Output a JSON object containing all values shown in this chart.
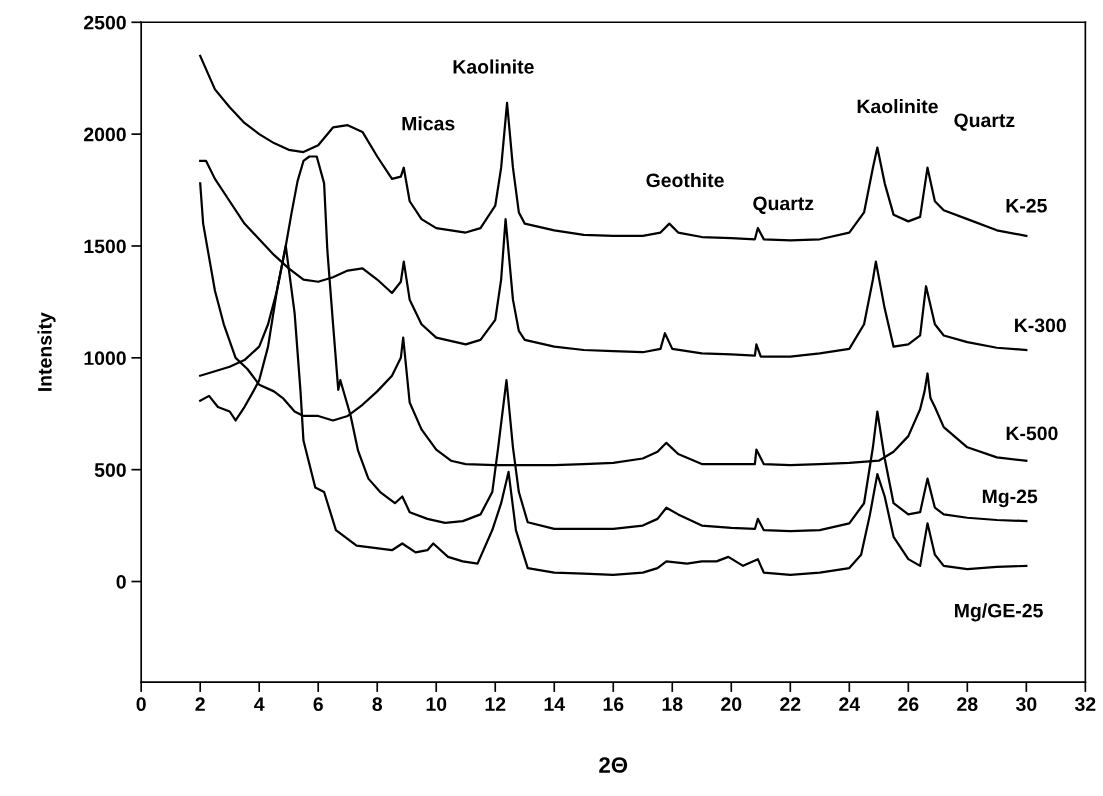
{
  "chart_data": {
    "type": "line",
    "xlabel": "2Θ",
    "ylabel": "Intensity",
    "xlim": [
      0,
      32
    ],
    "xticks": [
      0,
      2,
      4,
      6,
      8,
      10,
      12,
      14,
      16,
      18,
      20,
      22,
      24,
      26,
      28,
      30,
      32
    ],
    "ylim": [
      -450,
      2500
    ],
    "yticks": [
      0,
      500,
      1000,
      1500,
      2000,
      2500
    ],
    "grid": false,
    "legend": false,
    "marker": "none",
    "line_style": "solid",
    "series": [
      {
        "name": "K-25",
        "color": "#000000",
        "x": [
          2,
          2.5,
          3,
          3.5,
          4,
          4.5,
          5,
          5.5,
          6,
          6.5,
          7,
          7.5,
          8,
          8.5,
          8.8,
          8.9,
          9.1,
          9.5,
          10,
          11,
          11.5,
          12,
          12.2,
          12.4,
          12.6,
          12.8,
          13,
          14,
          15,
          16,
          17,
          17.6,
          17.9,
          18.2,
          19,
          20,
          20.8,
          20.9,
          21.1,
          22,
          23,
          24,
          24.5,
          24.8,
          24.95,
          25.2,
          25.5,
          26,
          26.4,
          26.65,
          26.9,
          27.2,
          28,
          29,
          30
        ],
        "values": [
          2350,
          2200,
          2120,
          2050,
          2000,
          1960,
          1930,
          1920,
          1950,
          2030,
          2040,
          2010,
          1900,
          1800,
          1810,
          1850,
          1700,
          1620,
          1580,
          1560,
          1580,
          1680,
          1850,
          2140,
          1850,
          1650,
          1600,
          1570,
          1550,
          1545,
          1545,
          1560,
          1600,
          1560,
          1540,
          1535,
          1530,
          1580,
          1530,
          1525,
          1530,
          1560,
          1650,
          1850,
          1940,
          1780,
          1640,
          1610,
          1630,
          1850,
          1700,
          1660,
          1620,
          1570,
          1545
        ]
      },
      {
        "name": "K-300",
        "color": "#000000",
        "x": [
          2,
          2.2,
          2.5,
          3,
          3.5,
          4,
          4.5,
          5,
          5.3,
          5.5,
          6,
          6.5,
          7,
          7.5,
          8,
          8.5,
          8.8,
          8.9,
          9.1,
          9.5,
          10,
          11,
          11.5,
          12,
          12.2,
          12.35,
          12.6,
          12.8,
          13,
          14,
          15,
          16,
          17,
          17.6,
          17.75,
          18,
          19,
          20,
          20.8,
          20.85,
          21,
          22,
          23,
          24,
          24.5,
          24.8,
          24.9,
          25.2,
          25.5,
          26,
          26.4,
          26.6,
          26.9,
          27.2,
          28,
          29,
          30
        ],
        "values": [
          1880,
          1880,
          1800,
          1700,
          1600,
          1530,
          1460,
          1400,
          1370,
          1350,
          1340,
          1360,
          1390,
          1400,
          1350,
          1290,
          1340,
          1430,
          1260,
          1150,
          1090,
          1060,
          1080,
          1170,
          1350,
          1620,
          1260,
          1120,
          1080,
          1050,
          1035,
          1030,
          1025,
          1040,
          1110,
          1040,
          1020,
          1015,
          1010,
          1060,
          1005,
          1005,
          1020,
          1040,
          1150,
          1350,
          1430,
          1220,
          1050,
          1060,
          1100,
          1320,
          1150,
          1100,
          1070,
          1045,
          1035
        ]
      },
      {
        "name": "K-500",
        "color": "#000000",
        "x": [
          2,
          2.1,
          2.3,
          2.5,
          2.8,
          3.2,
          3.6,
          4,
          4.5,
          4.8,
          5.2,
          5.5,
          6,
          6.5,
          7,
          7.5,
          8,
          8.5,
          8.8,
          8.88,
          9.1,
          9.5,
          10,
          10.5,
          11,
          12,
          13,
          14,
          15,
          16,
          17,
          17.5,
          17.8,
          18.2,
          19,
          20,
          20.8,
          20.85,
          21.1,
          22,
          23,
          24,
          25,
          25.5,
          26,
          26.4,
          26.55,
          26.65,
          26.75,
          26.9,
          27.2,
          28,
          29,
          30
        ],
        "values": [
          1780,
          1600,
          1450,
          1300,
          1150,
          1000,
          950,
          880,
          850,
          820,
          760,
          740,
          740,
          720,
          740,
          790,
          850,
          920,
          1000,
          1090,
          800,
          680,
          590,
          540,
          525,
          520,
          520,
          520,
          525,
          530,
          550,
          580,
          620,
          570,
          525,
          525,
          525,
          590,
          525,
          520,
          525,
          530,
          540,
          580,
          650,
          770,
          850,
          930,
          820,
          780,
          690,
          600,
          555,
          540
        ]
      },
      {
        "name": "Mg-25",
        "color": "#000000",
        "x": [
          2,
          2.5,
          3,
          3.5,
          4,
          4.3,
          4.6,
          4.9,
          5.1,
          5.3,
          5.5,
          5.7,
          5.95,
          6.2,
          6.31,
          6.5,
          6.68,
          6.75,
          7.1,
          7.35,
          7.7,
          8.1,
          8.6,
          8.85,
          9.1,
          9.7,
          10.3,
          10.9,
          11.5,
          11.9,
          12.1,
          12.38,
          12.6,
          12.8,
          13.1,
          14,
          15,
          16,
          17,
          17.5,
          17.8,
          18.2,
          19,
          20,
          20.8,
          20.9,
          21.1,
          22,
          23,
          24,
          24.5,
          24.8,
          24.95,
          25.2,
          25.5,
          26,
          26.4,
          26.65,
          26.9,
          27.2,
          28,
          29,
          30
        ],
        "values": [
          920,
          940,
          960,
          990,
          1050,
          1150,
          1300,
          1500,
          1650,
          1790,
          1880,
          1900,
          1900,
          1780,
          1480,
          1155,
          857,
          900,
          740,
          585,
          460,
          400,
          350,
          380,
          310,
          280,
          262,
          270,
          300,
          400,
          600,
          900,
          600,
          400,
          265,
          235,
          235,
          235,
          250,
          280,
          330,
          300,
          250,
          240,
          235,
          280,
          230,
          225,
          230,
          260,
          350,
          600,
          760,
          550,
          350,
          300,
          310,
          460,
          330,
          300,
          285,
          275,
          270
        ]
      },
      {
        "name": "Mg/GE-25",
        "color": "#000000",
        "x": [
          2,
          2.3,
          2.6,
          3,
          3.2,
          3.5,
          3.8,
          4,
          4.3,
          4.6,
          4.9,
          5.2,
          5.4,
          5.5,
          5.9,
          6.2,
          6.6,
          7.3,
          8.5,
          8.85,
          9.3,
          9.7,
          9.9,
          10.4,
          10.9,
          11.4,
          11.9,
          12.2,
          12.45,
          12.7,
          13.1,
          14,
          15,
          16,
          17,
          17.5,
          17.8,
          18.5,
          19,
          19.5,
          19.9,
          20.4,
          20.9,
          21.1,
          22,
          23,
          24,
          24.4,
          24.7,
          24.95,
          25.2,
          25.5,
          26,
          26.4,
          26.65,
          26.9,
          27.2,
          28,
          29,
          30
        ],
        "values": [
          808,
          830,
          780,
          760,
          720,
          780,
          850,
          900,
          1050,
          1300,
          1500,
          1200,
          850,
          630,
          420,
          400,
          230,
          160,
          140,
          170,
          130,
          140,
          170,
          110,
          90,
          80,
          230,
          350,
          490,
          230,
          60,
          40,
          35,
          30,
          40,
          60,
          90,
          80,
          90,
          90,
          110,
          70,
          100,
          40,
          30,
          40,
          60,
          120,
          300,
          480,
          380,
          200,
          100,
          70,
          260,
          120,
          70,
          55,
          65,
          70
        ]
      }
    ],
    "annotations": [
      "Micas",
      "Kaolinite",
      "Geothite",
      "Quartz",
      "Kaolinite",
      "Quartz"
    ]
  }
}
